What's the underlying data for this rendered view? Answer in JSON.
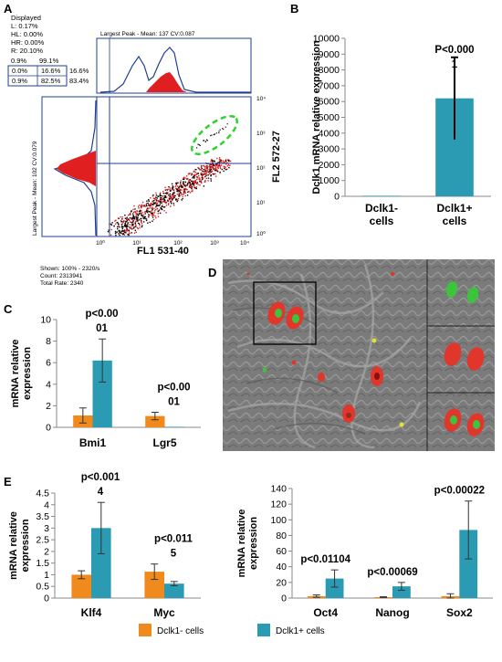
{
  "panel_labels": {
    "a": "A",
    "b": "B",
    "c": "C",
    "d": "D",
    "e": "E"
  },
  "flow": {
    "displayed_title": "Displayed",
    "stats": [
      "L: 0.17%",
      "HL: 0.00%",
      "HR: 0.00%",
      "R: 20.10%"
    ],
    "quad_top": [
      "0.9%",
      "99.1%"
    ],
    "quad_grid": [
      [
        "0.0%",
        "16.6%",
        "16.6%"
      ],
      [
        "0.9%",
        "82.5%",
        "83.4%"
      ]
    ],
    "top_hist_label": "Largest Peak - Mean: 137  CV:0.087",
    "left_hist_label": "Largest Peak - Mean: 102  CV:0.079",
    "x_axis_label": "FL1 531-40",
    "y_axis_label": "FL2 572-27",
    "x_ticks": [
      "10⁰",
      "10¹",
      "10²",
      "10³",
      "10⁴"
    ],
    "y_ticks": [
      "10⁴",
      "10³",
      "10²",
      "10¹",
      "10⁰"
    ],
    "footer": [
      "Shown: 100% - 2320/s",
      "Count: 2313941",
      "Total Rate: 2340"
    ]
  },
  "legend": {
    "items": [
      {
        "label": "Dclk1- cells",
        "color": "#f08a1c"
      },
      {
        "label": "Dclk1+ cells",
        "color": "#2a9bb3"
      }
    ]
  },
  "chart_data": [
    {
      "id": "B",
      "type": "bar",
      "ylabel": "Dclk1 mRNA relative expression",
      "ylim": [
        0,
        10000
      ],
      "yticks": [
        0,
        1000,
        2000,
        3000,
        4000,
        5000,
        6000,
        7000,
        8000,
        9000,
        10000
      ],
      "categories": [
        "Dclk1- cells",
        "Dclk1+ cells"
      ],
      "values": [
        1,
        6200
      ],
      "errors": [
        0,
        2600
      ],
      "colors": [
        "#2a9bb3",
        "#2a9bb3"
      ],
      "annotations": [
        {
          "category": 1,
          "lines": [
            "P<0.000",
            "1"
          ]
        }
      ]
    },
    {
      "id": "C",
      "type": "bar",
      "ylabel": "mRNA relative expression",
      "ylim": [
        0,
        10
      ],
      "yticks": [
        0,
        2,
        4,
        6,
        8,
        10
      ],
      "categories": [
        "Bmi1",
        "Lgr5"
      ],
      "series": [
        {
          "name": "Dclk1- cells",
          "color": "#f08a1c",
          "values": [
            1.1,
            1.05
          ],
          "errors": [
            0.7,
            0.35
          ]
        },
        {
          "name": "Dclk1+ cells",
          "color": "#2a9bb3",
          "values": [
            6.2,
            0.02
          ],
          "errors": [
            2.0,
            0
          ]
        }
      ],
      "annotations": [
        {
          "category": 0,
          "lines": [
            "p<0.00",
            "01"
          ]
        },
        {
          "category": 1,
          "lines": [
            "p<0.00",
            "01"
          ]
        }
      ]
    },
    {
      "id": "E-left",
      "type": "bar",
      "ylabel": "mRNA relative expression",
      "ylim": [
        0,
        4.5
      ],
      "yticks": [
        0,
        0.5,
        1,
        1.5,
        2,
        2.5,
        3,
        3.5,
        4,
        4.5
      ],
      "categories": [
        "Klf4",
        "Myc"
      ],
      "series": [
        {
          "name": "Dclk1- cells",
          "color": "#f08a1c",
          "values": [
            1.0,
            1.13
          ],
          "errors": [
            0.17,
            0.33
          ]
        },
        {
          "name": "Dclk1+ cells",
          "color": "#2a9bb3",
          "values": [
            3.0,
            0.62
          ],
          "errors": [
            1.1,
            0.09
          ]
        }
      ],
      "annotations": [
        {
          "category": 0,
          "lines": [
            "p<0.001",
            "4"
          ]
        },
        {
          "category": 1,
          "lines": [
            "p<0.011",
            "5"
          ]
        }
      ]
    },
    {
      "id": "E-right",
      "type": "bar",
      "ylabel": "mRNA relative expression",
      "ylim": [
        0,
        140
      ],
      "yticks": [
        0,
        20,
        40,
        60,
        80,
        100,
        120,
        140
      ],
      "categories": [
        "Oct4",
        "Nanog",
        "Sox2"
      ],
      "series": [
        {
          "name": "Dclk1- cells",
          "color": "#f08a1c",
          "values": [
            2.5,
            1.2,
            2.5
          ],
          "errors": [
            1.5,
            0.5,
            3.0
          ]
        },
        {
          "name": "Dclk1+ cells",
          "color": "#2a9bb3",
          "values": [
            25,
            15,
            87
          ],
          "errors": [
            11,
            5,
            37
          ]
        }
      ],
      "annotations": [
        {
          "category": 0,
          "lines": [
            "p<0.01104"
          ]
        },
        {
          "category": 1,
          "lines": [
            "p<0.00069"
          ]
        },
        {
          "category": 2,
          "lines": [
            "p<0.00022"
          ]
        }
      ]
    }
  ]
}
